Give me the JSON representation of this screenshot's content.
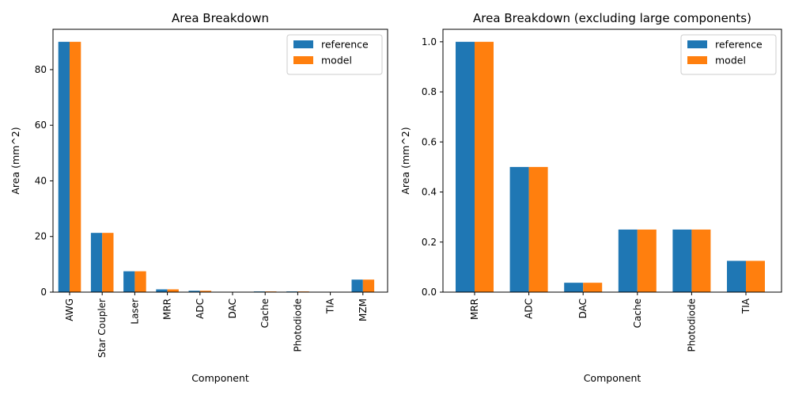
{
  "chart_data": [
    {
      "type": "bar",
      "title": "Area Breakdown",
      "xlabel": "Component",
      "ylabel": "Area (mm^2)",
      "categories": [
        "AWG",
        "Star Coupler",
        "Laser",
        "MRR",
        "ADC",
        "DAC",
        "Cache",
        "Photodiode",
        "TIA",
        "MZM"
      ],
      "series": [
        {
          "name": "reference",
          "color": "#1f77b4",
          "values": [
            90,
            21.3,
            7.5,
            1.0,
            0.5,
            0.0375,
            0.25,
            0.25,
            0.125,
            4.5
          ]
        },
        {
          "name": "model",
          "color": "#ff7f0e",
          "values": [
            90,
            21.3,
            7.5,
            1.0,
            0.5,
            0.0375,
            0.25,
            0.25,
            0.125,
            4.5
          ]
        }
      ],
      "ylim": [
        0,
        94.5
      ],
      "yticks": [
        0,
        20,
        40,
        60,
        80
      ],
      "ytick_labels": [
        "0",
        "20",
        "40",
        "60",
        "80"
      ],
      "legend": "top-right",
      "grid": false
    },
    {
      "type": "bar",
      "title": "Area Breakdown (excluding large components)",
      "xlabel": "Component",
      "ylabel": "Area (mm^2)",
      "categories": [
        "MRR",
        "ADC",
        "DAC",
        "Cache",
        "Photodiode",
        "TIA"
      ],
      "series": [
        {
          "name": "reference",
          "color": "#1f77b4",
          "values": [
            1.0,
            0.5,
            0.0375,
            0.25,
            0.25,
            0.125
          ]
        },
        {
          "name": "model",
          "color": "#ff7f0e",
          "values": [
            1.0,
            0.5,
            0.0375,
            0.25,
            0.25,
            0.125
          ]
        }
      ],
      "ylim": [
        0,
        1.05
      ],
      "yticks": [
        0,
        0.2,
        0.4,
        0.6,
        0.8,
        1.0
      ],
      "ytick_labels": [
        "0.0",
        "0.2",
        "0.4",
        "0.6",
        "0.8",
        "1.0"
      ],
      "legend": "top-right",
      "grid": false
    }
  ]
}
